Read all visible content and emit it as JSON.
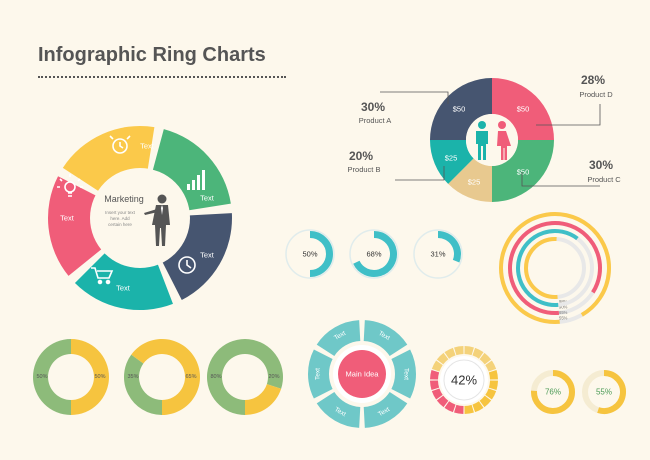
{
  "title": "Infographic Ring Charts",
  "colors": {
    "yellow": "#fbc94a",
    "green": "#4cb57a",
    "teal": "#1bb3aa",
    "navy": "#465570",
    "pink": "#f05d79",
    "lightgreen": "#8dbb7a",
    "gold": "#f6c43f",
    "tan": "#e8c98f",
    "cyan": "#3fbfc7",
    "aqua": "#6fc8c8",
    "grey": "#e5e5e5",
    "text": "#555555",
    "bg": "#fdf8ec"
  },
  "marketing_ring": {
    "center_title": "Marketing",
    "center_text": [
      "Insert your text",
      "here. Add",
      "certain here"
    ],
    "segments": [
      {
        "label": "Text",
        "color": "#fbc94a",
        "icon": "alarm-clock-icon"
      },
      {
        "label": "Text",
        "color": "#4cb57a",
        "icon": "bar-growth-icon"
      },
      {
        "label": "Text",
        "color": "#465570",
        "icon": "clock-icon"
      },
      {
        "label": "Text",
        "color": "#1bb3aa",
        "icon": "shopping-cart-icon"
      },
      {
        "label": "Text",
        "color": "#f05d79",
        "icon": "light-bulb-icon"
      }
    ],
    "center_icon": "businessman-presenting-icon"
  },
  "chart_data": [
    {
      "type": "pie",
      "id": "product-donut",
      "center_icon": "man-woman-icon",
      "categories": [
        "Product A",
        "Product D",
        "Product C",
        "Product B"
      ],
      "values": [
        30,
        28,
        30,
        20
      ],
      "slice_labels": [
        "$50",
        "$50",
        "$50",
        "$25"
      ],
      "extra_slice_label": "$25",
      "callouts": [
        {
          "percent": "30%",
          "name": "Product A"
        },
        {
          "percent": "28%",
          "name": "Product D"
        },
        {
          "percent": "20%",
          "name": "Product B"
        },
        {
          "percent": "30%",
          "name": "Product C"
        }
      ]
    },
    {
      "type": "pie",
      "id": "small-progress-rings",
      "values": [
        50,
        68,
        31
      ],
      "labels": [
        "50%",
        "68%",
        "31%"
      ],
      "color": "#3fbfc7"
    },
    {
      "type": "pie",
      "id": "concentric-rings",
      "series": [
        {
          "value": 98,
          "label": "98%",
          "color": "#fbc94a"
        },
        {
          "value": 90,
          "label": "90%",
          "color": "#f05d79"
        },
        {
          "value": 65,
          "label": "65%",
          "color": "#3fbfc7"
        },
        {
          "value": 55,
          "label": "55%",
          "color": "#fbc94a"
        }
      ]
    },
    {
      "type": "pie",
      "id": "split-donuts",
      "items": [
        {
          "left": 50,
          "right": 50,
          "left_label": "50%",
          "right_label": "50%"
        },
        {
          "left": 35,
          "right": 65,
          "left_label": "35%",
          "right_label": "65%"
        },
        {
          "left": 80,
          "right": 20,
          "left_label": "80%",
          "right_label": "20%"
        }
      ],
      "left_color": "#8dbb7a",
      "right_color": "#f6c43f"
    },
    {
      "type": "pie",
      "id": "main-idea-ring",
      "center_label": "Main Idea",
      "segment_labels": [
        "Text",
        "Text",
        "Text",
        "Text",
        "Text",
        "Text"
      ]
    },
    {
      "type": "pie",
      "id": "gauge-ring",
      "value": 42,
      "label": "42%"
    },
    {
      "type": "pie",
      "id": "yellow-progress",
      "values": [
        76,
        55
      ],
      "labels": [
        "76%",
        "55%"
      ],
      "color": "#f6c43f"
    }
  ]
}
